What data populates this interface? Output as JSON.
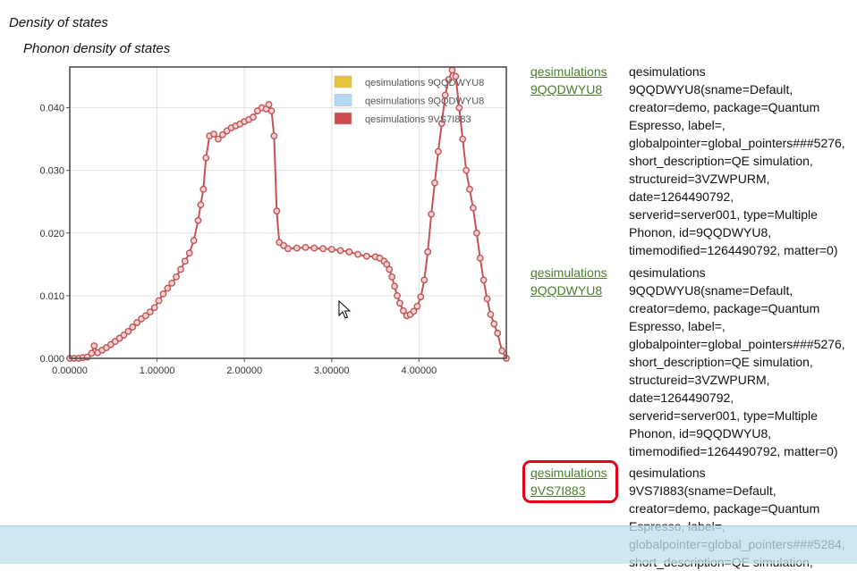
{
  "page": {
    "title": "Density of states"
  },
  "chart_data": {
    "type": "line",
    "title": "Phonon density of states",
    "xlabel": "",
    "ylabel": "",
    "xlim": [
      0,
      5.0
    ],
    "ylim": [
      0,
      0.0465
    ],
    "xticks": [
      "0.00000",
      "1.00000",
      "2.00000",
      "3.00000",
      "4.00000"
    ],
    "xtick_values": [
      0,
      1,
      2,
      3,
      4
    ],
    "yticks": [
      "0.000",
      "0.010",
      "0.020",
      "0.030",
      "0.040"
    ],
    "ytick_values": [
      0,
      0.01,
      0.02,
      0.03,
      0.04
    ],
    "grid": true,
    "legend_position": "top-right",
    "legend": [
      {
        "label": "qesimulations 9QQDWYU8",
        "color": "#e8c23a"
      },
      {
        "label": "qesimulations 9QQDWYU8",
        "color": "#b5d7f2"
      },
      {
        "label": "qesimulations 9VS7I883",
        "color": "#cc4b4b"
      }
    ],
    "series": [
      {
        "name": "qesimulations 9VS7I883",
        "color": "#c45353",
        "x": [
          0.0,
          0.05,
          0.1,
          0.15,
          0.2,
          0.25,
          0.28,
          0.32,
          0.37,
          0.42,
          0.47,
          0.52,
          0.57,
          0.62,
          0.67,
          0.72,
          0.77,
          0.82,
          0.87,
          0.92,
          0.97,
          1.02,
          1.07,
          1.12,
          1.17,
          1.22,
          1.27,
          1.32,
          1.37,
          1.42,
          1.47,
          1.5,
          1.53,
          1.56,
          1.6,
          1.65,
          1.7,
          1.75,
          1.8,
          1.85,
          1.9,
          1.95,
          2.0,
          2.05,
          2.1,
          2.15,
          2.2,
          2.25,
          2.28,
          2.31,
          2.34,
          2.37,
          2.4,
          2.45,
          2.5,
          2.6,
          2.7,
          2.8,
          2.9,
          3.0,
          3.1,
          3.2,
          3.3,
          3.4,
          3.5,
          3.55,
          3.6,
          3.63,
          3.66,
          3.69,
          3.72,
          3.75,
          3.78,
          3.82,
          3.86,
          3.9,
          3.94,
          3.98,
          4.02,
          4.06,
          4.1,
          4.14,
          4.18,
          4.22,
          4.26,
          4.3,
          4.34,
          4.38,
          4.42,
          4.46,
          4.5,
          4.54,
          4.58,
          4.62,
          4.66,
          4.7,
          4.74,
          4.78,
          4.82,
          4.86,
          4.9,
          4.95,
          5.0
        ],
        "y": [
          0.0,
          0.0,
          0.0,
          0.0001,
          0.0002,
          0.0008,
          0.002,
          0.0009,
          0.0013,
          0.0017,
          0.0022,
          0.0027,
          0.0032,
          0.0037,
          0.0043,
          0.005,
          0.0057,
          0.0063,
          0.0068,
          0.0074,
          0.0081,
          0.0092,
          0.0103,
          0.0112,
          0.012,
          0.013,
          0.0142,
          0.0155,
          0.0168,
          0.0188,
          0.022,
          0.0245,
          0.027,
          0.032,
          0.0355,
          0.0358,
          0.035,
          0.0357,
          0.0363,
          0.0368,
          0.0371,
          0.0374,
          0.0378,
          0.0381,
          0.0385,
          0.0395,
          0.04,
          0.0398,
          0.0405,
          0.0395,
          0.0355,
          0.0235,
          0.0185,
          0.018,
          0.0175,
          0.0176,
          0.0177,
          0.0176,
          0.0175,
          0.0174,
          0.0172,
          0.017,
          0.0166,
          0.0163,
          0.0162,
          0.016,
          0.0155,
          0.015,
          0.0142,
          0.013,
          0.0115,
          0.01,
          0.0088,
          0.0076,
          0.0068,
          0.007,
          0.0075,
          0.0083,
          0.0098,
          0.0125,
          0.017,
          0.023,
          0.028,
          0.033,
          0.0375,
          0.042,
          0.0445,
          0.046,
          0.045,
          0.04,
          0.035,
          0.03,
          0.027,
          0.024,
          0.02,
          0.016,
          0.0125,
          0.0095,
          0.007,
          0.0055,
          0.004,
          0.0012,
          0.0
        ]
      }
    ]
  },
  "entries": [
    {
      "link": "qesimulations 9QQDWYU8",
      "description": "qesimulations\n9QQDWYU8(sname=Default,\ncreator=demo, package=Quantum\nEspresso, label=,\nglobalpointer=global_pointers###5276,\nshort_description=QE simulation,\nstructureid=3VZWPURM,\ndate=1264490792,\nserverid=server001, type=Multiple\nPhonon, id=9QQDWYU8,\ntimemodified=1264490792, matter=0)"
    },
    {
      "link": "qesimulations 9QQDWYU8",
      "description": "qesimulations\n9QQDWYU8(sname=Default,\ncreator=demo, package=Quantum\nEspresso, label=,\nglobalpointer=global_pointers###5276,\nshort_description=QE simulation,\nstructureid=3VZWPURM,\ndate=1264490792,\nserverid=server001, type=Multiple\nPhonon, id=9QQDWYU8,\ntimemodified=1264490792, matter=0)"
    },
    {
      "link": "qesimulations 9VS7I883",
      "description": "qesimulations\n9VS7I883(sname=Default,\ncreator=demo, package=Quantum\nEspresso, label=,\nglobalpointer=global_pointers###5284,\nshort_description=QE simulation,"
    }
  ]
}
